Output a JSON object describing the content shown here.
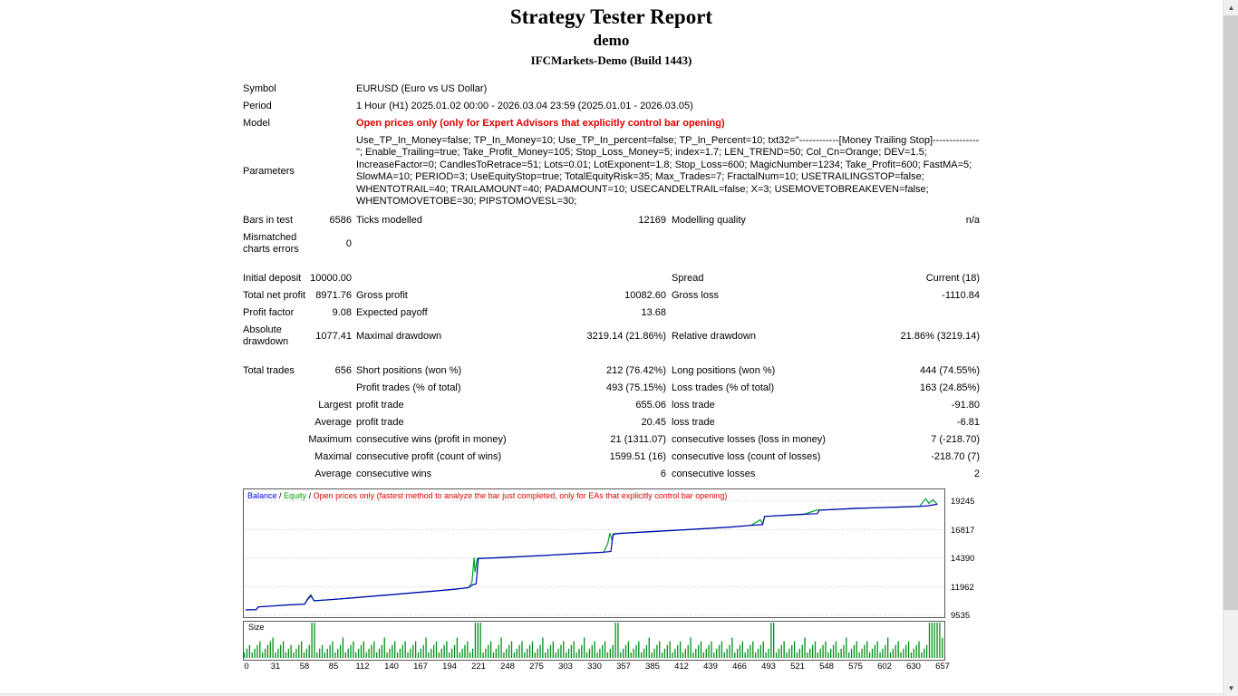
{
  "header": {
    "title": "Strategy Tester Report",
    "subtitle": "demo",
    "server_build": "IFCMarkets-Demo (Build 1443)"
  },
  "info": {
    "symbol": {
      "label": "Symbol",
      "value": "EURUSD (Euro vs US Dollar)"
    },
    "period": {
      "label": "Period",
      "value": "1 Hour (H1) 2025.01.02 00:00 - 2026.03.04 23:59 (2025.01.01 - 2026.03.05)"
    },
    "model": {
      "label": "Model",
      "value": "Open prices only (only for Expert Advisors that explicitly control bar opening)"
    },
    "parameters": {
      "label": "Parameters",
      "value": "Use_TP_In_Money=false; TP_In_Money=10; Use_TP_In_percent=false; TP_In_Percent=10; txt32=\"------------[Money Trailing Stop]--------------\"; Enable_Trailing=true; Take_Profit_Money=105; Stop_Loss_Money=5; index=1.7; LEN_TREND=50; Col_Cn=Orange; DEV=1.5; IncreaseFactor=0; CandlesToRetrace=51; Lots=0.01; LotExponent=1.8; Stop_Loss=600; MagicNumber=1234; Take_Profit=600; FastMA=5; SlowMA=10; PERIOD=3; UseEquityStop=true; TotalEquityRisk=35; Max_Trades=7; FractalNum=10; USETRAILINGSTOP=false; WHENTOTRAIL=40; TRAILAMOUNT=40; PADAMOUNT=10; USECANDELTRAIL=false; X=3; USEMOVETOBREAKEVEN=false; WHENTOMOVETOBE=30; PIPSTOMOVESL=30;"
    }
  },
  "stats": {
    "rows": [
      {
        "c1": "Bars in test",
        "c2": "6586",
        "c3": "Ticks modelled",
        "c4": "12169",
        "c5": "Modelling quality",
        "c6": "n/a"
      },
      {
        "c1": "Mismatched charts errors",
        "c2": "0",
        "c3": "",
        "c4": "",
        "c5": "",
        "c6": ""
      },
      {
        "c1": "Initial deposit",
        "c2": "10000.00",
        "c3": "",
        "c4": "",
        "c5": "Spread",
        "c6": "Current (18)"
      },
      {
        "c1": "Total net profit",
        "c2": "8971.76",
        "c3": "Gross profit",
        "c4": "10082.60",
        "c5": "Gross loss",
        "c6": "-1110.84"
      },
      {
        "c1": "Profit factor",
        "c2": "9.08",
        "c3": "Expected payoff",
        "c4": "13.68",
        "c5": "",
        "c6": ""
      },
      {
        "c1": "Absolute drawdown",
        "c2": "1077.41",
        "c3": "Maximal drawdown",
        "c4": "3219.14 (21.86%)",
        "c5": "Relative drawdown",
        "c6": "21.86% (3219.14)"
      },
      {
        "c1": "Total trades",
        "c2": "656",
        "c3": "Short positions (won %)",
        "c4": "212 (76.42%)",
        "c5": "Long positions (won %)",
        "c6": "444 (74.55%)"
      },
      {
        "c1": "",
        "c2": "",
        "c3": "Profit trades (% of total)",
        "c4": "493 (75.15%)",
        "c5": "Loss trades (% of total)",
        "c6": "163 (24.85%)"
      },
      {
        "c1": "",
        "c2": "Largest",
        "c3": "profit trade",
        "c4": "655.06",
        "c5": "loss trade",
        "c6": "-91.80"
      },
      {
        "c1": "",
        "c2": "Average",
        "c3": "profit trade",
        "c4": "20.45",
        "c5": "loss trade",
        "c6": "-6.81"
      },
      {
        "c1": "",
        "c2": "Maximum",
        "c3": "consecutive wins (profit in money)",
        "c4": "21 (1311.07)",
        "c5": "consecutive losses (loss in money)",
        "c6": "7 (-218.70)"
      },
      {
        "c1": "",
        "c2": "Maximal",
        "c3": "consecutive profit (count of wins)",
        "c4": "1599.51 (16)",
        "c5": "consecutive loss (count of losses)",
        "c6": "-218.70 (7)"
      },
      {
        "c1": "",
        "c2": "Average",
        "c3": "consecutive wins",
        "c4": "6",
        "c5": "consecutive losses",
        "c6": "2"
      }
    ]
  },
  "legend": {
    "balance": "Balance",
    "sep": " / ",
    "equity": "Equity",
    "note": "Open prices only (fastest method to analyze the bar just completed, only for EAs that explicitly control bar opening)"
  },
  "size_chart_label": "Size",
  "colors": {
    "model_warning": "#e00000",
    "balance": "#0000c0",
    "equity": "#00a228",
    "bars": "#009018",
    "grid": "#c8c8c8",
    "legend_balance": "#0000ff",
    "legend_equity": "#00a000",
    "legend_warning": "#e00000"
  },
  "chart_data": [
    {
      "type": "line",
      "title": "Balance / Equity curve",
      "xlim": [
        0,
        662
      ],
      "ylim": [
        9383,
        20231
      ],
      "yticks": [
        9535,
        11962,
        14390,
        16817,
        19245
      ],
      "xticks": [
        0,
        31,
        58,
        85,
        112,
        140,
        167,
        194,
        221,
        248,
        275,
        303,
        330,
        357,
        385,
        412,
        439,
        466,
        493,
        521,
        548,
        575,
        602,
        630,
        657
      ],
      "grid": true,
      "legend_position": "top-left",
      "series": [
        {
          "name": "Balance",
          "points": [
            [
              0,
              10000
            ],
            [
              10,
              10020
            ],
            [
              12,
              10250
            ],
            [
              25,
              10330
            ],
            [
              40,
              10420
            ],
            [
              56,
              10480
            ],
            [
              59,
              10900
            ],
            [
              62,
              11180
            ],
            [
              65,
              10780
            ],
            [
              80,
              10870
            ],
            [
              100,
              11010
            ],
            [
              120,
              11160
            ],
            [
              140,
              11310
            ],
            [
              160,
              11460
            ],
            [
              180,
              11610
            ],
            [
              200,
              11770
            ],
            [
              212,
              11900
            ],
            [
              216,
              12150
            ],
            [
              219,
              12200
            ],
            [
              221,
              14350
            ],
            [
              240,
              14430
            ],
            [
              260,
              14520
            ],
            [
              280,
              14610
            ],
            [
              300,
              14710
            ],
            [
              320,
              14810
            ],
            [
              340,
              14900
            ],
            [
              347,
              14960
            ],
            [
              349,
              16430
            ],
            [
              357,
              16500
            ],
            [
              380,
              16620
            ],
            [
              400,
              16720
            ],
            [
              420,
              16820
            ],
            [
              440,
              16920
            ],
            [
              460,
              17030
            ],
            [
              480,
              17180
            ],
            [
              491,
              17240
            ],
            [
              493,
              17930
            ],
            [
              510,
              18020
            ],
            [
              530,
              18120
            ],
            [
              543,
              18170
            ],
            [
              545,
              18470
            ],
            [
              560,
              18530
            ],
            [
              580,
              18620
            ],
            [
              600,
              18680
            ],
            [
              620,
              18730
            ],
            [
              640,
              18790
            ],
            [
              648,
              18840
            ],
            [
              657,
              18972
            ]
          ]
        },
        {
          "name": "Equity",
          "points": [
            [
              0,
              10000
            ],
            [
              10,
              10020
            ],
            [
              12,
              10250
            ],
            [
              25,
              10330
            ],
            [
              40,
              10420
            ],
            [
              56,
              10500
            ],
            [
              59,
              10950
            ],
            [
              62,
              11300
            ],
            [
              65,
              10760
            ],
            [
              80,
              10860
            ],
            [
              100,
              11000
            ],
            [
              120,
              11150
            ],
            [
              140,
              11300
            ],
            [
              160,
              11450
            ],
            [
              180,
              11600
            ],
            [
              200,
              11760
            ],
            [
              212,
              11890
            ],
            [
              215,
              12380
            ],
            [
              217,
              14430
            ],
            [
              218,
              13200
            ],
            [
              220,
              14380
            ],
            [
              240,
              14420
            ],
            [
              260,
              14510
            ],
            [
              280,
              14600
            ],
            [
              300,
              14700
            ],
            [
              320,
              14800
            ],
            [
              340,
              14890
            ],
            [
              344,
              15620
            ],
            [
              346,
              16520
            ],
            [
              348,
              15950
            ],
            [
              350,
              16480
            ],
            [
              357,
              16510
            ],
            [
              380,
              16610
            ],
            [
              400,
              16710
            ],
            [
              420,
              16810
            ],
            [
              440,
              16910
            ],
            [
              460,
              17020
            ],
            [
              480,
              17170
            ],
            [
              489,
              17650
            ],
            [
              491,
              17280
            ],
            [
              493,
              17940
            ],
            [
              510,
              18010
            ],
            [
              530,
              18110
            ],
            [
              542,
              18460
            ],
            [
              545,
              18480
            ],
            [
              560,
              18520
            ],
            [
              580,
              18610
            ],
            [
              600,
              18670
            ],
            [
              620,
              18720
            ],
            [
              640,
              18780
            ],
            [
              646,
              19430
            ],
            [
              649,
              19050
            ],
            [
              653,
              19350
            ],
            [
              657,
              18972
            ]
          ]
        }
      ]
    },
    {
      "type": "bar",
      "title": "Size",
      "note": "Lot size per trade, heights estimated on a 0-9 relative scale, one digit per bar",
      "values_encoded": "123123412345123412312341239912312341235123412341234123512341234123412351234123412351234129991234123512341234123412351234123412341235123412341239912341234123512341234123412351234123412341235123412341234129912341234123512341234123412351234123412341235123412341234123999995"
    }
  ]
}
